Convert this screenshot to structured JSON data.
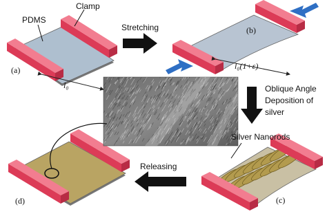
{
  "panels": [
    {
      "label": "(a)"
    },
    {
      "label": "(b)"
    },
    {
      "label": "(c)"
    },
    {
      "label": "(d)"
    }
  ],
  "annotations": {
    "pdms": "PDMS",
    "clamp": "Clamp",
    "length": "l₀",
    "stretched_length": "l₀(1+ε)",
    "nanorods": "Silver Nanorods"
  },
  "steps": {
    "stretching": "Stretching",
    "deposition": [
      "Oblique Angle",
      "Deposition of",
      "silver"
    ],
    "releasing": "Releasing"
  }
}
